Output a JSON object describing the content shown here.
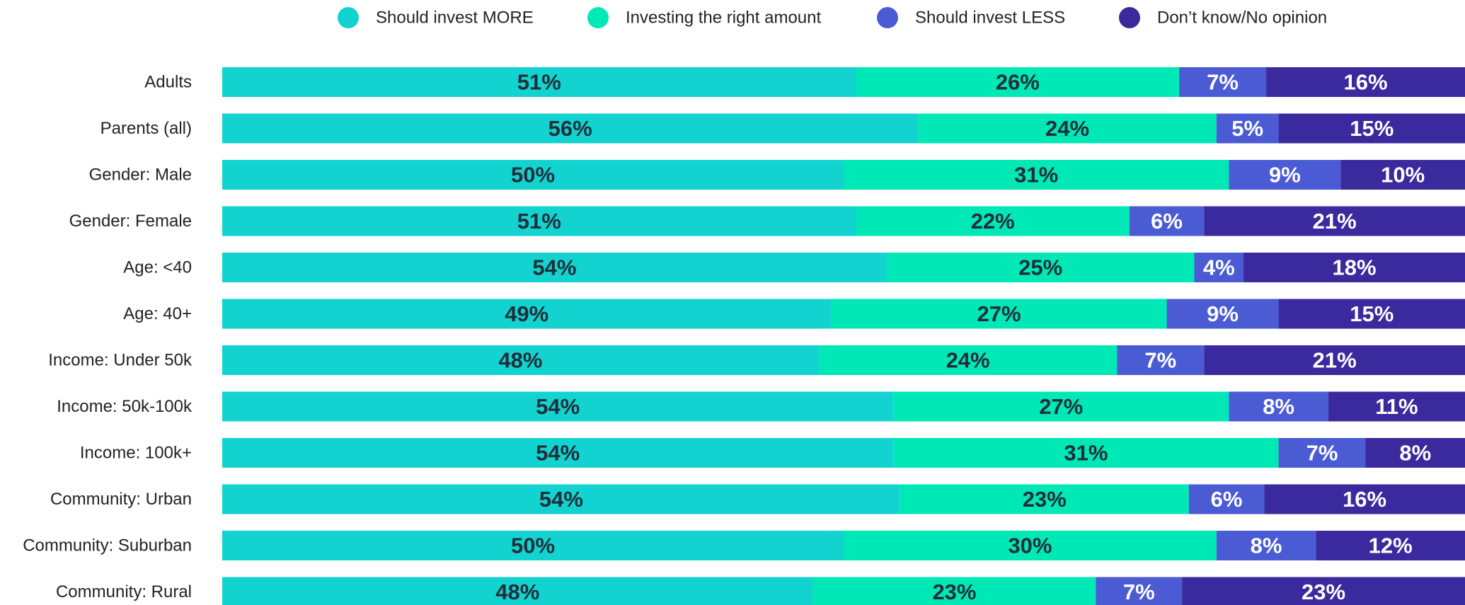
{
  "chart_data": {
    "type": "stacked_bar",
    "orientation": "horizontal",
    "categories": [
      "Adults",
      "Parents (all)",
      "Gender: Male",
      "Gender: Female",
      "Age: <40",
      "Age: 40+",
      "Income: Under 50k",
      "Income: 50k-100k",
      "Income: 100k+",
      "Community: Urban",
      "Community: Suburban",
      "Community: Rural"
    ],
    "series": [
      {
        "name": "Should invest MORE",
        "color": "#12d3cf",
        "label_color": "#1f2d3a",
        "values": [
          51,
          56,
          50,
          51,
          54,
          49,
          48,
          54,
          54,
          54,
          50,
          48
        ],
        "value_labels": [
          "51%",
          "56%",
          "50%",
          "51%",
          "54%",
          "49%",
          "48%",
          "54%",
          "54%",
          "54%",
          "50%",
          "48%"
        ]
      },
      {
        "name": "Investing the right amount",
        "color": "#00e8b5",
        "label_color": "#1f2d3a",
        "values": [
          26,
          24,
          31,
          22,
          25,
          27,
          24,
          27,
          31,
          23,
          30,
          23
        ],
        "value_labels": [
          "26%",
          "24%",
          "31%",
          "22%",
          "25%",
          "27%",
          "24%",
          "27%",
          "31%",
          "23%",
          "30%",
          "23%"
        ]
      },
      {
        "name": "Should invest LESS",
        "color": "#4a5bd4",
        "label_color": "#ffffff",
        "values": [
          7,
          5,
          9,
          6,
          4,
          9,
          7,
          8,
          7,
          6,
          8,
          7
        ],
        "value_labels": [
          "7%",
          "5%",
          "9%",
          "6%",
          "4%",
          "9%",
          "7%",
          "8%",
          "7%",
          "6%",
          "8%",
          "7%"
        ]
      },
      {
        "name": "Don’t know/No opinion",
        "color": "#3a2a9e",
        "label_color": "#ffffff",
        "values": [
          16,
          15,
          10,
          21,
          18,
          15,
          21,
          11,
          8,
          16,
          12,
          23
        ],
        "value_labels": [
          "16%",
          "15%",
          "10%",
          "21%",
          "18%",
          "15%",
          "21%",
          "11%",
          "8%",
          "16%",
          "12%",
          "23%"
        ]
      }
    ]
  }
}
